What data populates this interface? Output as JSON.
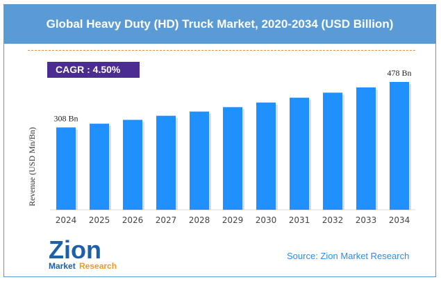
{
  "chart_data": {
    "type": "bar",
    "title": "Global Heavy Duty (HD) Truck Market, 2020-2034 (USD Billion)",
    "ylabel": "Revenue (USD Mn/Bn)",
    "xlabel": "",
    "categories": [
      "2024",
      "2025",
      "2026",
      "2027",
      "2028",
      "2029",
      "2030",
      "2031",
      "2032",
      "2033",
      "2034"
    ],
    "values": [
      308,
      321.9,
      336.3,
      351.5,
      367.3,
      383.8,
      401.1,
      419.2,
      438.0,
      457.7,
      478
    ],
    "data_labels": {
      "first": "308 Bn",
      "last": "478 Bn"
    },
    "ylim": [
      0,
      478
    ],
    "grid": false,
    "bar_color": "#1e90ff"
  },
  "cagr": "CAGR : 4.50%",
  "source": "Source: Zion Market Research",
  "logo": {
    "text": "Zion",
    "sub1": "Market",
    "sub2": "Research"
  },
  "colors": {
    "header": "#5b9bd5",
    "cagr_bg": "#4b2c91",
    "source": "#2e8be6"
  }
}
